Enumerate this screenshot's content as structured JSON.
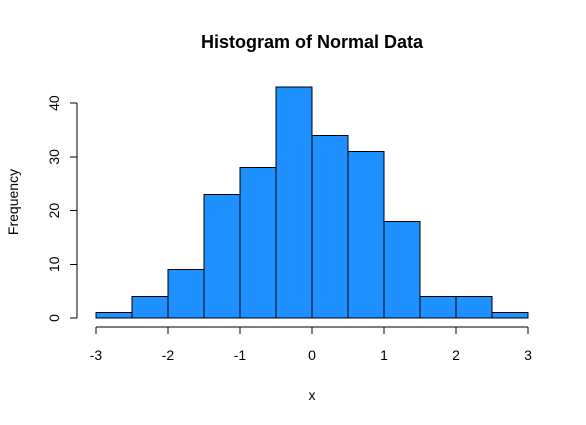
{
  "chart_data": {
    "type": "bar",
    "title": "Histogram of Normal Data",
    "xlabel": "x",
    "ylabel": "Frequency",
    "bins": [
      {
        "x0": -3.0,
        "x1": -2.5,
        "count": 1
      },
      {
        "x0": -2.5,
        "x1": -2.0,
        "count": 4
      },
      {
        "x0": -2.0,
        "x1": -1.5,
        "count": 9
      },
      {
        "x0": -1.5,
        "x1": -1.0,
        "count": 23
      },
      {
        "x0": -1.0,
        "x1": -0.5,
        "count": 28
      },
      {
        "x0": -0.5,
        "x1": 0.0,
        "count": 43
      },
      {
        "x0": 0.0,
        "x1": 0.5,
        "count": 34
      },
      {
        "x0": 0.5,
        "x1": 1.0,
        "count": 31
      },
      {
        "x0": 1.0,
        "x1": 1.5,
        "count": 18
      },
      {
        "x0": 1.5,
        "x1": 2.0,
        "count": 4
      },
      {
        "x0": 2.0,
        "x1": 2.5,
        "count": 4
      },
      {
        "x0": 2.5,
        "x1": 3.0,
        "count": 1
      }
    ],
    "xlim": [
      -3,
      3
    ],
    "ylim": [
      0,
      43
    ],
    "x_ticks": [
      -3,
      -2,
      -1,
      0,
      1,
      2,
      3
    ],
    "y_ticks": [
      0,
      10,
      20,
      30,
      40
    ],
    "x_tick_labels": [
      "-3",
      "-2",
      "-1",
      "0",
      "1",
      "2",
      "3"
    ],
    "y_tick_labels": [
      "0",
      "10",
      "20",
      "30",
      "40"
    ],
    "bar_color": "#1E90FF",
    "edge_color": "#000000",
    "grid": false
  }
}
